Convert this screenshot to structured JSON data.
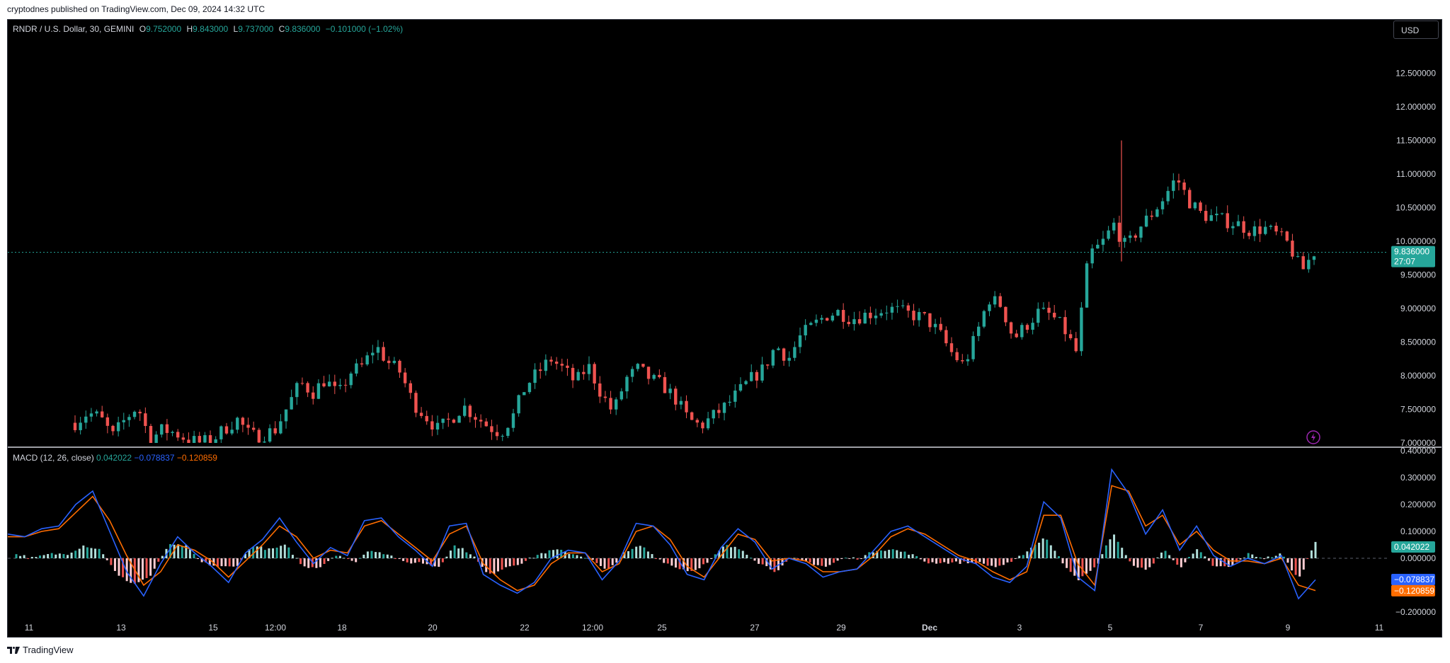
{
  "header": {
    "publisher_text": "cryptodnes published on TradingView.com, Dec 09, 2024 14:32 UTC"
  },
  "footer": {
    "brand": "TradingView"
  },
  "toolbar": {
    "currency": "USD"
  },
  "legend": {
    "symbol": "RNDR / U.S. Dollar, 30, GEMINI",
    "o_label": "O",
    "o_value": "9.752000",
    "h_label": "H",
    "h_value": "9.843000",
    "l_label": "L",
    "l_value": "9.737000",
    "c_label": "C",
    "c_value": "9.836000",
    "change": "−0.101000 (−1.02%)"
  },
  "macd_legend": {
    "title": "MACD (12, 26, close)",
    "hist": "0.042022",
    "macd": "−0.078837",
    "signal": "−0.120859"
  },
  "colors": {
    "up": "#26a69a",
    "down": "#ef5350",
    "macd": "#2962ff",
    "signal": "#ff6d00",
    "hist_up": "#b2dfdb",
    "hist_down": "#ffcdd2"
  },
  "chart_data": [
    {
      "type": "candlestick",
      "title": "RNDR / U.S. Dollar, 30, GEMINI",
      "ylim": [
        7.0,
        12.8
      ],
      "price_ticks": [
        "12.500000",
        "12.000000",
        "11.500000",
        "11.000000",
        "10.500000",
        "10.000000",
        "9.500000",
        "9.000000",
        "8.500000",
        "8.000000",
        "7.500000",
        "7.000000"
      ],
      "x_ticks": [
        "11",
        "13",
        "15",
        "12:00",
        "18",
        "20",
        "22",
        "12:00",
        "25",
        "27",
        "29",
        "Dec",
        "3",
        "5",
        "7",
        "9",
        "11"
      ],
      "last_price": "9.836000",
      "countdown": "27:07",
      "close_path": [
        7.3,
        7.45,
        7.38,
        7.1,
        7.35,
        7.55,
        7.05,
        7.2,
        7.15,
        7.05,
        7.0,
        7.05,
        7.22,
        7.35,
        7.1,
        7.12,
        7.2,
        7.55,
        7.9,
        7.75,
        7.95,
        7.7,
        8.05,
        8.15,
        8.45,
        8.2,
        8.05,
        7.6,
        7.4,
        7.2,
        7.35,
        7.55,
        7.4,
        7.25,
        7.15,
        7.4,
        7.85,
        8.05,
        8.25,
        8.1,
        7.9,
        8.15,
        7.75,
        7.45,
        7.95,
        8.1,
        7.95,
        7.85,
        7.65,
        7.35,
        7.25,
        7.4,
        7.55,
        7.75,
        7.95,
        8.1,
        8.45,
        8.25,
        8.6,
        8.75,
        8.9,
        8.95,
        8.85,
        8.9,
        8.95,
        9.0,
        8.95,
        8.9,
        8.85,
        8.65,
        8.35,
        8.15,
        8.6,
        9.15,
        9.05,
        8.55,
        8.75,
        8.95,
        8.9,
        8.7,
        8.35,
        9.8,
        9.95,
        10.25,
        9.9,
        10.2,
        10.4,
        10.65,
        10.95,
        10.6,
        10.4,
        10.35,
        10.3,
        10.25,
        10.15,
        10.2,
        10.1,
        9.95,
        9.55,
        9.84
      ]
    },
    {
      "type": "line",
      "title": "MACD (12, 26, close)",
      "ylim": [
        -0.22,
        0.4
      ],
      "y_ticks": [
        "0.400000",
        "0.300000",
        "0.200000",
        "0.100000",
        "0.000000",
        "−0.200000"
      ],
      "series": [
        {
          "name": "MACD",
          "last": "−0.078837",
          "values": [
            0.09,
            0.08,
            0.11,
            0.12,
            0.2,
            0.25,
            0.1,
            -0.05,
            -0.14,
            -0.02,
            0.08,
            0.02,
            -0.03,
            -0.09,
            0.02,
            0.07,
            0.15,
            0.06,
            -0.02,
            0.04,
            0.01,
            0.14,
            0.15,
            0.08,
            0.03,
            -0.03,
            0.12,
            0.13,
            -0.06,
            -0.1,
            -0.13,
            -0.09,
            0.0,
            0.03,
            0.02,
            -0.08,
            -0.01,
            0.13,
            0.12,
            0.05,
            -0.06,
            -0.08,
            0.04,
            0.11,
            0.06,
            -0.04,
            0.0,
            -0.02,
            -0.07,
            -0.05,
            -0.04,
            0.03,
            0.1,
            0.12,
            0.08,
            0.04,
            0.0,
            -0.02,
            -0.07,
            -0.09,
            -0.03,
            0.21,
            0.15,
            -0.07,
            -0.12,
            0.33,
            0.24,
            0.09,
            0.18,
            0.03,
            0.12,
            0.01,
            -0.03,
            0.0,
            -0.02,
            0.01,
            -0.15,
            -0.08
          ]
        },
        {
          "name": "Signal",
          "last": "−0.120859",
          "values": [
            0.08,
            0.08,
            0.1,
            0.11,
            0.17,
            0.23,
            0.14,
            0.01,
            -0.1,
            -0.05,
            0.05,
            0.03,
            -0.01,
            -0.07,
            -0.01,
            0.05,
            0.12,
            0.08,
            0.0,
            0.03,
            0.02,
            0.12,
            0.14,
            0.09,
            0.04,
            -0.01,
            0.09,
            0.12,
            -0.02,
            -0.08,
            -0.12,
            -0.1,
            -0.02,
            0.02,
            0.02,
            -0.05,
            -0.02,
            0.1,
            0.12,
            0.07,
            -0.03,
            -0.07,
            0.01,
            0.09,
            0.07,
            -0.01,
            0.0,
            -0.01,
            -0.05,
            -0.05,
            -0.04,
            0.01,
            0.08,
            0.11,
            0.09,
            0.05,
            0.01,
            -0.01,
            -0.05,
            -0.08,
            -0.05,
            0.16,
            0.16,
            -0.02,
            -0.1,
            0.27,
            0.25,
            0.12,
            0.16,
            0.05,
            0.1,
            0.03,
            -0.01,
            -0.01,
            -0.02,
            0.0,
            -0.1,
            -0.12
          ]
        },
        {
          "name": "Histogram",
          "last": "0.042022"
        }
      ]
    }
  ]
}
